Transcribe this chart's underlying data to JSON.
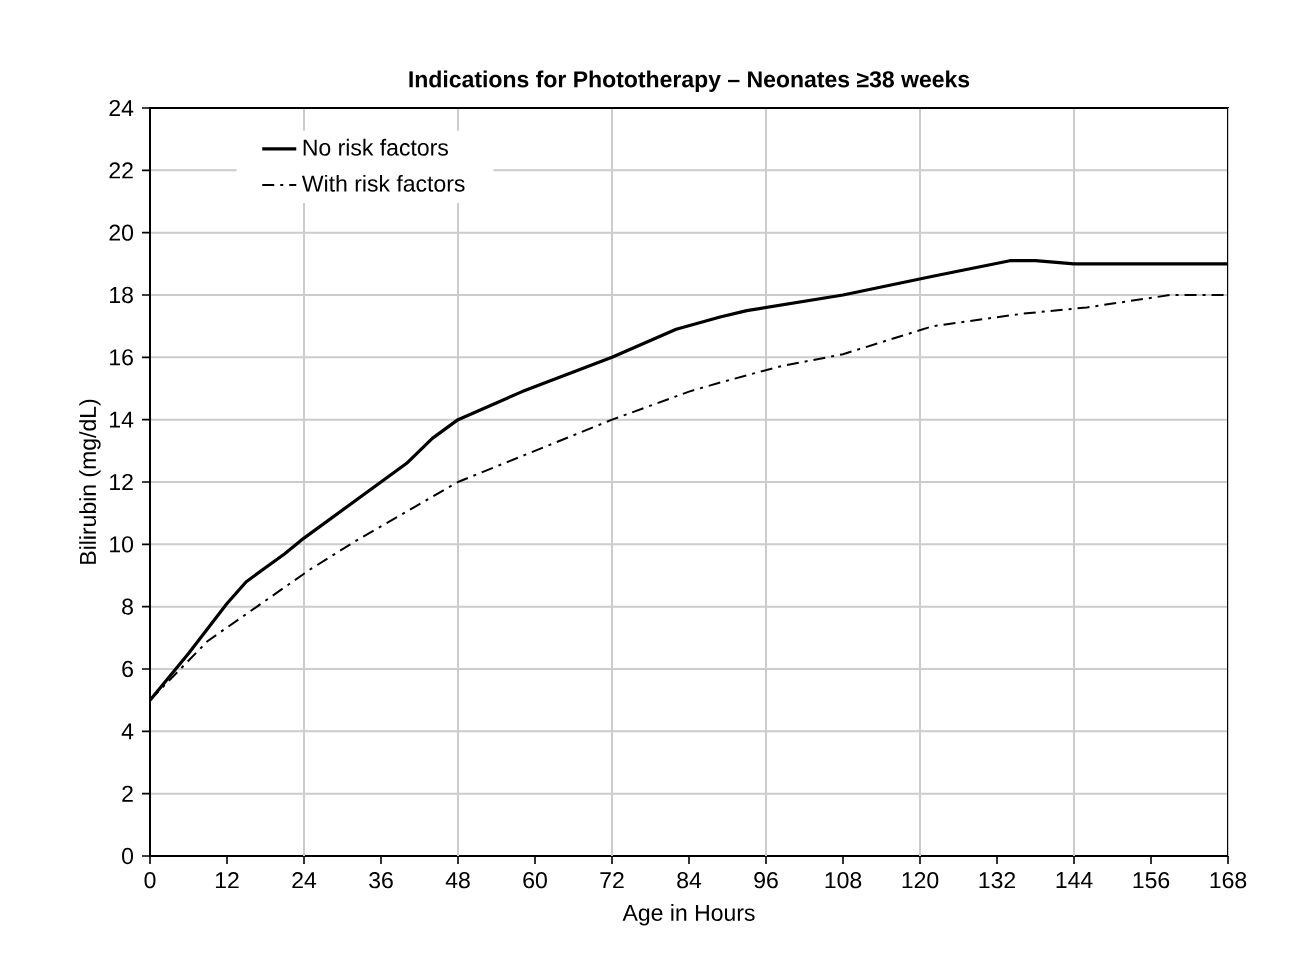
{
  "chart_data": {
    "type": "line",
    "title": "Indications for Phototherapy – Neonates ≥38 weeks",
    "xlabel": "Age in Hours",
    "ylabel": "Bilirubin (mg/dL)",
    "xlim": [
      0,
      168
    ],
    "xticks": [
      0,
      12,
      24,
      36,
      48,
      60,
      72,
      84,
      96,
      108,
      120,
      132,
      144,
      156,
      168
    ],
    "ylim": [
      0,
      24
    ],
    "yticks": [
      0,
      2,
      4,
      6,
      8,
      10,
      12,
      14,
      16,
      18,
      20,
      22,
      24
    ],
    "grid": true,
    "legend": "top left",
    "marker": "none",
    "series": [
      {
        "name": "No risk factors",
        "color": "#000000",
        "line_style": "solid",
        "x": [
          0,
          6,
          12,
          15,
          21,
          24,
          40,
          44,
          48,
          58,
          72,
          82,
          89,
          93,
          108,
          122,
          134,
          138,
          144,
          168
        ],
        "values": [
          5,
          6.5,
          8.1,
          8.8,
          9.7,
          10.2,
          12.6,
          13.4,
          14,
          14.9,
          16,
          16.9,
          17.3,
          17.5,
          18,
          18.6,
          19.1,
          19.1,
          19,
          19
        ]
      },
      {
        "name": "With risk factors",
        "color": "#000000",
        "line_style": "dashed",
        "x": [
          0,
          9,
          25,
          32,
          48,
          72,
          84,
          89,
          98,
          108,
          122,
          136,
          146,
          159,
          168
        ],
        "values": [
          5,
          6.9,
          9.2,
          10.1,
          12,
          14,
          14.9,
          15.2,
          15.7,
          16.1,
          17,
          17.4,
          17.6,
          18,
          18
        ]
      }
    ]
  }
}
